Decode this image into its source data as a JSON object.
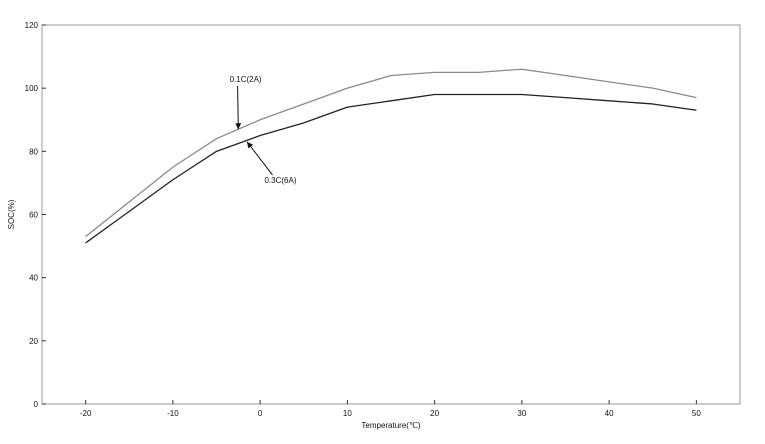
{
  "chart_data": {
    "type": "line",
    "xlabel": "Temperature(℃)",
    "ylabel": "SOC(%)",
    "xlim": [
      -25,
      55
    ],
    "ylim": [
      0,
      120
    ],
    "xticks": [
      -20,
      -10,
      0,
      10,
      20,
      30,
      40,
      50
    ],
    "yticks": [
      0,
      20,
      40,
      60,
      80,
      100,
      120
    ],
    "grid": false,
    "series": [
      {
        "name": "0.1C(2A)",
        "color": "#8a8a8a",
        "x": [
          -20,
          -15,
          -10,
          -5,
          0,
          5,
          10,
          15,
          20,
          25,
          30,
          35,
          40,
          45,
          50
        ],
        "y": [
          53,
          64,
          75,
          84,
          90,
          95,
          100,
          104,
          105,
          105,
          106,
          104,
          102,
          100,
          97
        ]
      },
      {
        "name": "0.3C(6A)",
        "color": "#222222",
        "x": [
          -20,
          -15,
          -10,
          -5,
          0,
          5,
          10,
          15,
          20,
          25,
          30,
          35,
          40,
          45,
          50
        ],
        "y": [
          51,
          61,
          71,
          80,
          85,
          89,
          94,
          96,
          98,
          98,
          98,
          97,
          96,
          95,
          93
        ]
      }
    ],
    "annotations": [
      {
        "text": "0.1C(2A)",
        "series": 0,
        "label_at": [
          -3.5,
          102
        ],
        "arrow_to": [
          -2.5,
          87
        ]
      },
      {
        "text": "0.3C(6A)",
        "series": 1,
        "label_at": [
          0.5,
          70
        ],
        "arrow_to": [
          -1.5,
          83
        ]
      }
    ]
  }
}
